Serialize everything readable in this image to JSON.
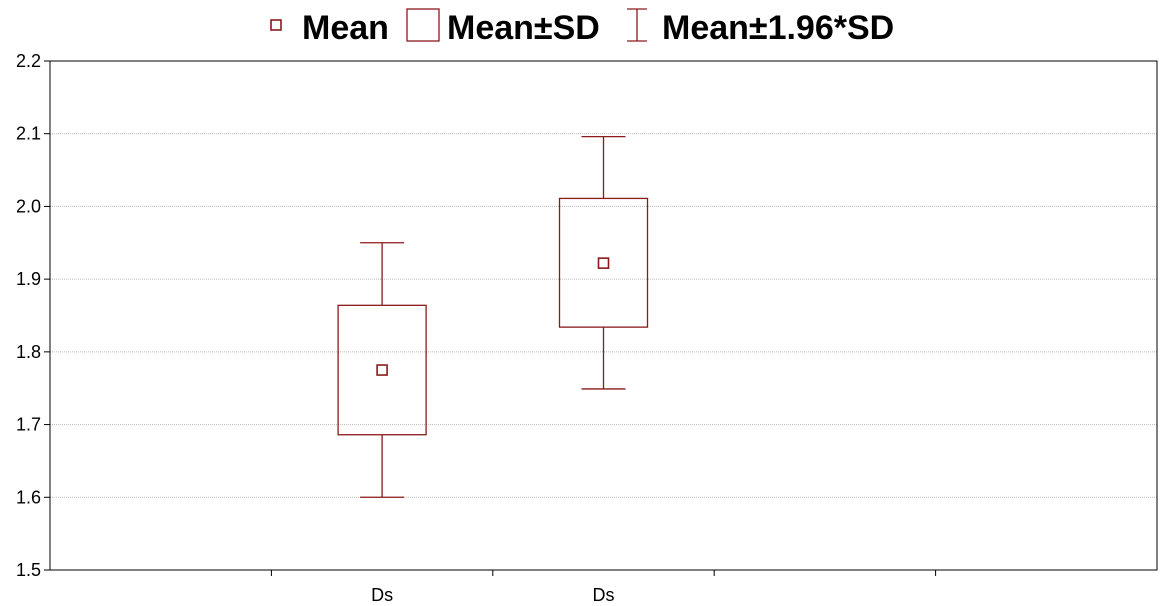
{
  "chart_data": {
    "type": "box",
    "legend": {
      "position": "top",
      "items": [
        {
          "label": "Mean",
          "symbol": "small-square"
        },
        {
          "label": "Mean±SD",
          "symbol": "box"
        },
        {
          "label": "Mean±1.96*SD",
          "symbol": "whisker"
        }
      ]
    },
    "categories": [
      "Ds",
      "Ds"
    ],
    "boxes": [
      {
        "category": "Ds",
        "mean": 1.775,
        "sd_low": 1.686,
        "sd_high": 1.864,
        "whisker_low": 1.6,
        "whisker_high": 1.95
      },
      {
        "category": "Ds",
        "mean": 1.922,
        "sd_low": 1.834,
        "sd_high": 2.011,
        "whisker_low": 1.749,
        "whisker_high": 2.096
      }
    ],
    "ylim": [
      1.5,
      2.2
    ],
    "yticks": [
      "1.5",
      "1.6",
      "1.7",
      "1.8",
      "1.9",
      "2.0",
      "2.1",
      "2.2"
    ],
    "x_category_slots": 5,
    "grid": true,
    "colors": {
      "series": "#8b1a1a",
      "grid": "#bbbbbb",
      "axis": "#000000"
    }
  }
}
